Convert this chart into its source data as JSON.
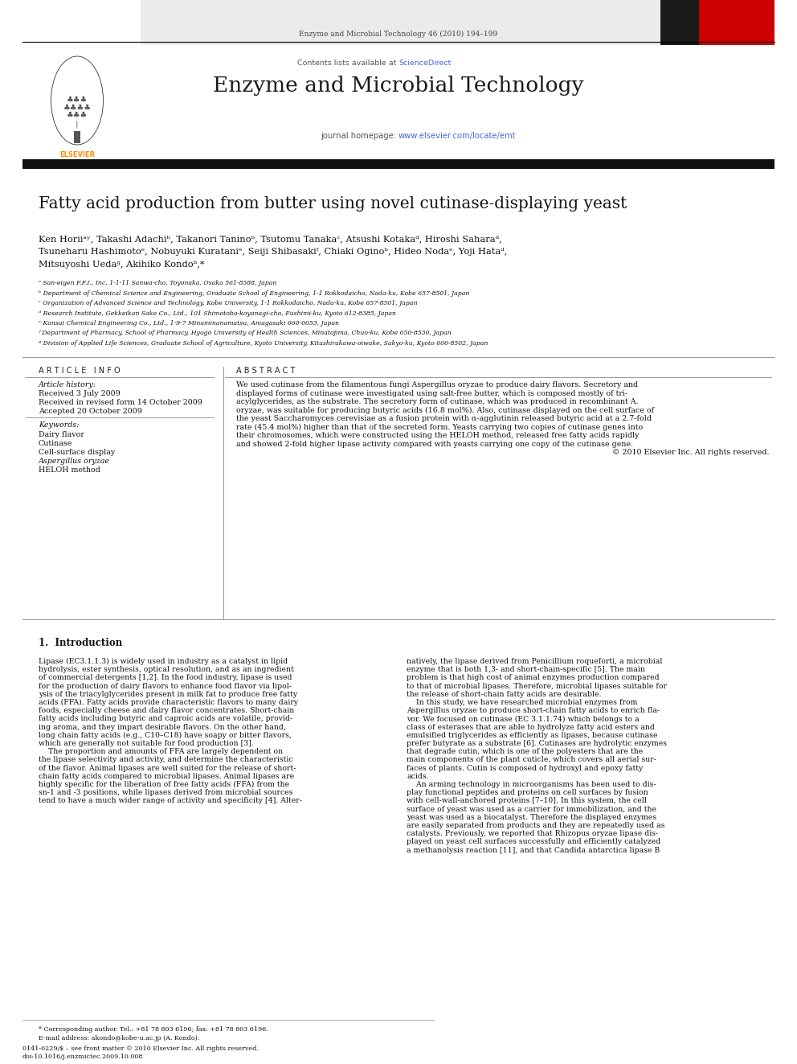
{
  "page_width": 9.92,
  "page_height": 13.23,
  "bg_color": "#ffffff",
  "top_journal_line": "Enzyme and Microbial Technology 46 (2010) 194–199",
  "header_bg": "#e8e8e8",
  "contents_line": "Contents lists available at ",
  "science_direct": "ScienceDirect",
  "science_direct_color": "#4169E1",
  "journal_name": "Enzyme and Microbial Technology",
  "journal_homepage": "journal homepage: ",
  "journal_url": "www.elsevier.com/locate/emt",
  "journal_url_color": "#4169E1",
  "article_title": "Fatty acid production from butter using novel cutinase-displaying yeast",
  "authors_line1": "Ken Horiiᵃʸ, Takashi Adachiᵇ, Takanori Taninoᵇ, Tsutomu Tanakaᶜ, Atsushi Kotakaᵈ, Hiroshi Saharaᵈ,",
  "authors_line2": "Tsuneharu Hashimotoᵉ, Nobuyuki Kurataniᵉ, Seiji Shibasakiᶠ, Chiaki Oginoᵇ, Hideo Nodaᵉ, Yoji Hataᵈ,",
  "authors_line3": "Mitsuyoshi Uedaᵍ, Akihiko Kondoᵇ,*",
  "affil_a": "ᵃ San-eigen F.F.I., Inc, 1-1-11 Sanwa-cho, Toyonaka, Osaka 561-8588, Japan",
  "affil_b": "ᵇ Department of Chemical Science and Engineering, Graduate School of Engineering, 1-1 Rokkodaicho, Nada-ku, Kobe 657-8501, Japan",
  "affil_c": "ᶜ Organization of Advanced Science and Technology, Kobe University, 1-1 Rokkodaicho, Nada-ku, Kobe 657-8501, Japan",
  "affil_d": "ᵈ Research Institute, Gekkeikan Sake Co., Ltd., 101 Shimotoba-koyanagi-cho, Fushimi-ku, Kyoto 612-8385, Japan",
  "affil_e": "ᵉ Kansai Chemical Engineering Co., Ltd., 1-9-7 Minaminanamatsu, Amagasaki 660-0053, Japan",
  "affil_f": "ᶠ Department of Pharmacy, School of Pharmacy, Hyogo University of Health Sciences, Minatojima, Chuo-ku, Kobe 650-8530, Japan",
  "affil_g": "ᵍ Division of Applied Life Sciences, Graduate School of Agriculture, Kyoto University, Kitashirakawa-oiwake, Sakyo-ku, Kyoto 606-8502, Japan",
  "article_info_header": "A R T I C L E   I N F O",
  "article_history_title": "Article history:",
  "received1": "Received 3 July 2009",
  "received2": "Received in revised form 14 October 2009",
  "accepted": "Accepted 20 October 2009",
  "keywords_title": "Keywords:",
  "kw1": "Dairy flavor",
  "kw2": "Cutinase",
  "kw3": "Cell-surface display",
  "kw4": "Aspergillus oryzae",
  "kw5": "HELOH method",
  "abstract_header": "A B S T R A C T",
  "abstract_lines": [
    "We used cutinase from the filamentous fungi Aspergillus oryzae to produce dairy flavors. Secretory and",
    "displayed forms of cutinase were investigated using salt-free butter, which is composed mostly of tri-",
    "acylglycerides, as the substrate. The secretory form of cutinase, which was produced in recombinant A.",
    "oryzae, was suitable for producing butyric acids (16.8 mol%). Also, cutinase displayed on the cell surface of",
    "the yeast Saccharomyces cerevisiae as a fusion protein with α-agglutinin released butyric acid at a 2.7-fold",
    "rate (45.4 mol%) higher than that of the secreted form. Yeasts carrying two copies of cutinase genes into",
    "their chromosomes, which were constructed using the HELOH method, released free fatty acids rapidly",
    "and showed 2-fold higher lipase activity compared with yeasts carrying one copy of the cutinase gene.",
    "© 2010 Elsevier Inc. All rights reserved."
  ],
  "intro_title": "1.  Introduction",
  "intro_col1_lines": [
    "Lipase (EC3.1.1.3) is widely used in industry as a catalyst in lipid",
    "hydrolysis, ester synthesis, optical resolution, and as an ingredient",
    "of commercial detergents [1,2]. In the food industry, lipase is used",
    "for the production of dairy flavors to enhance food flavor via lipol-",
    "ysis of the triacylglycerides present in milk fat to produce free fatty",
    "acids (FFA). Fatty acids provide characteristic flavors to many dairy",
    "foods, especially cheese and dairy flavor concentrates. Short-chain",
    "fatty acids including butyric and caproic acids are volatile, provid-",
    "ing aroma, and they impart desirable flavors. On the other hand,",
    "long chain fatty acids (e.g., C10–C18) have soapy or bitter flavors,",
    "which are generally not suitable for food production [3].",
    "    The proportion and amounts of FFA are largely dependent on",
    "the lipase selectivity and activity, and determine the characteristic",
    "of the flavor. Animal lipases are well suited for the release of short-",
    "chain fatty acids compared to microbial lipases. Animal lipases are",
    "highly specific for the liberation of free fatty acids (FFA) from the",
    "sn-1 and -3 positions, while lipases derived from microbial sources",
    "tend to have a much wider range of activity and specificity [4]. Alter-"
  ],
  "intro_col2_lines": [
    "natively, the lipase derived from Penicillium roqueforti, a microbial",
    "enzyme that is both 1,3- and short-chain-specific [5]. The main",
    "problem is that high cost of animal enzymes production compared",
    "to that of microbial lipases. Therefore, microbial lipases suitable for",
    "the release of short-chain fatty acids are desirable.",
    "    In this study, we have researched microbial enzymes from",
    "Aspergillus oryzae to produce short-chain fatty acids to enrich fla-",
    "vor. We focused on cutinase (EC 3.1.1.74) which belongs to a",
    "class of esterases that are able to hydrolyze fatty acid esters and",
    "emulsified triglycerides as efficiently as lipases, because cutinase",
    "prefer butyrate as a substrate [6]. Cutinases are hydrolytic enzymes",
    "that degrade cutin, which is one of the polyesters that are the",
    "main components of the plant cuticle, which covers all aerial sur-",
    "faces of plants. Cutin is composed of hydroxyl and epoxy fatty",
    "acids.",
    "    An arming technology in microorganisms has been used to dis-",
    "play functional peptides and proteins on cell surfaces by fusion",
    "with cell-wall-anchored proteins [7–10]. In this system, the cell",
    "surface of yeast was used as a carrier for immobilization, and the",
    "yeast was used as a biocatalyst. Therefore the displayed enzymes",
    "are easily separated from products and they are repeatedly used as",
    "catalysts. Previously, we reported that Rhizopus oryzae lipase dis-",
    "played on yeast cell surfaces successfully and efficiently catalyzed",
    "a methanolysis reaction [11], and that Candida antarctica lipase B"
  ],
  "footer_line1": "* Corresponding author. Tel.: +81 78 803 6196; fax: +81 78 803 6196.",
  "footer_line2": "E-mail address: akondo@kobe-u.ac.jp (A. Kondo).",
  "footer_line3": "0141-0229/$ – see front matter © 2010 Elsevier Inc. All rights reserved.",
  "footer_line4": "doi:10.1016/j.enzmictec.2009.10.008",
  "elsevier_color": "#FF8C00",
  "emt_red": "#cc0000",
  "emt_dark": "#1a1a1a"
}
